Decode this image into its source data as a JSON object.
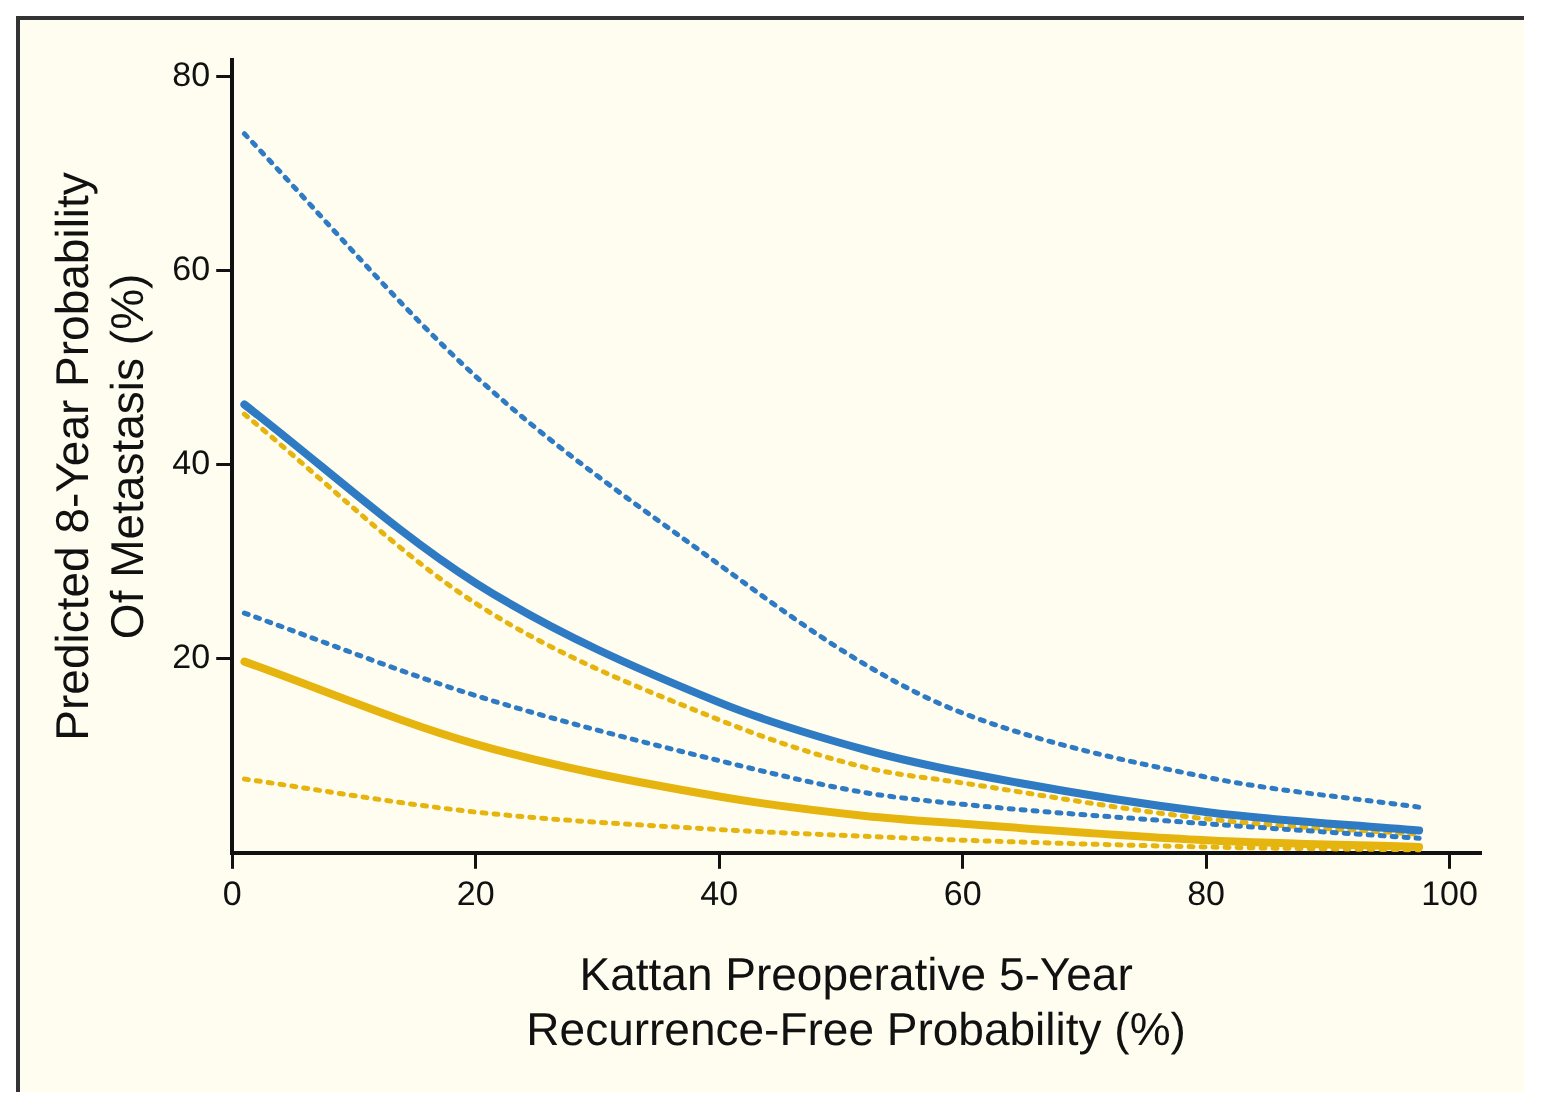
{
  "chart_data": {
    "type": "line",
    "xlabel": "Kattan Preoperative 5-Year\nRecurrence-Free Probability (%)",
    "ylabel": "Predicted 8-Year Probability\nOf Metastasis (%)",
    "x": [
      1,
      20,
      40,
      52,
      60,
      80,
      97.5
    ],
    "series": [
      {
        "color": "#2e7bc4",
        "line_style": "dotted",
        "values": [
          74.1,
          49.1,
          29.7,
          19.4,
          14.4,
          7.8,
          4.7
        ]
      },
      {
        "color": "#2e7bc4",
        "line_style": "solid",
        "values": [
          46.2,
          27.8,
          15.5,
          10.6,
          8.3,
          4.2,
          2.3
        ]
      },
      {
        "color": "#2e7bc4",
        "line_style": "dotted",
        "values": [
          24.7,
          16.2,
          9.5,
          6.2,
          5.0,
          3.0,
          1.5
        ]
      },
      {
        "color": "#e6b40f",
        "line_style": "dotted",
        "values": [
          45.2,
          25.7,
          13.7,
          8.8,
          7.2,
          3.5,
          1.9
        ]
      },
      {
        "color": "#e6b40f",
        "line_style": "solid",
        "values": [
          19.7,
          11.2,
          5.8,
          3.8,
          3.0,
          1.3,
          0.6
        ]
      },
      {
        "color": "#e6b40f",
        "line_style": "dotted",
        "values": [
          7.6,
          4.2,
          2.4,
          1.7,
          1.3,
          0.6,
          0.3
        ]
      }
    ],
    "xlim": [
      0,
      102.5
    ],
    "xticks": [
      0,
      20,
      40,
      60,
      80,
      100
    ],
    "ylim": [
      0,
      81.7
    ],
    "yticks": [
      20,
      40,
      60,
      80
    ],
    "grid": false,
    "legend": false,
    "marker": "none"
  }
}
